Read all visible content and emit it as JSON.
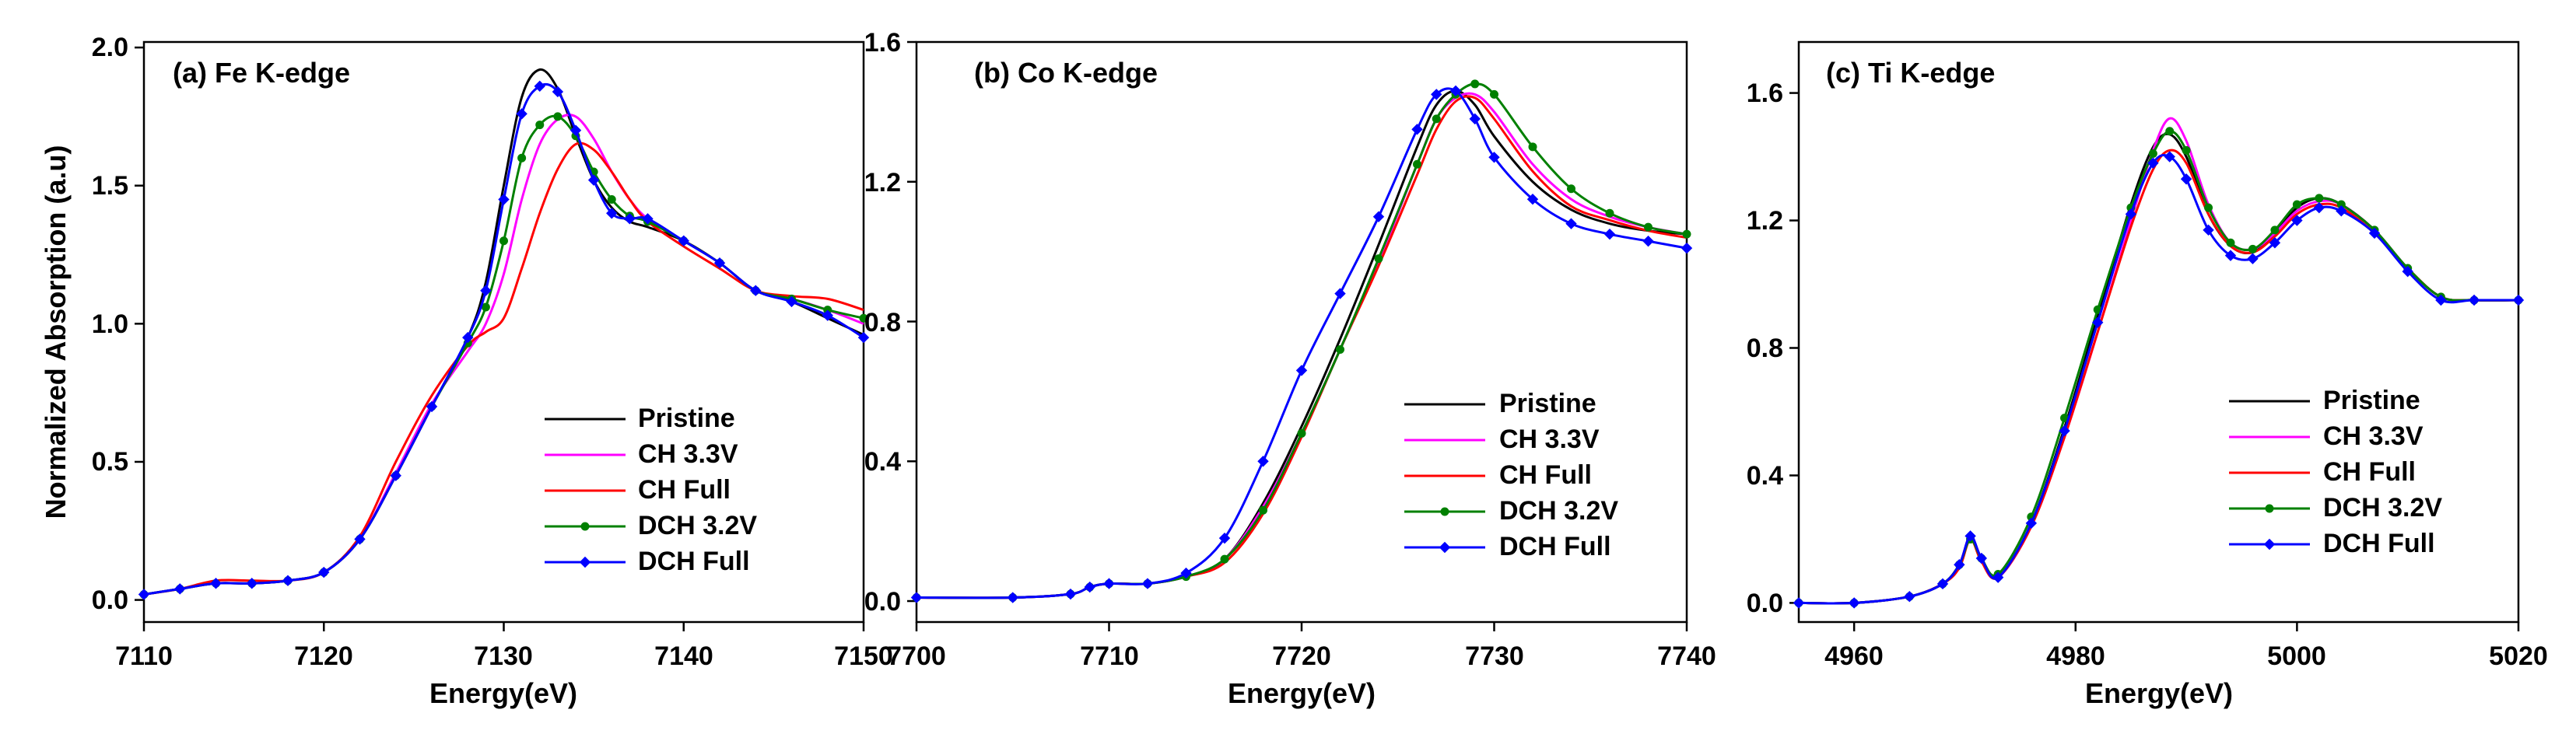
{
  "series_styles": [
    {
      "name": "Pristine",
      "color": "#000000",
      "marker": "none"
    },
    {
      "name": "CH 3.3V",
      "color": "#ff00ff",
      "marker": "none"
    },
    {
      "name": "CH Full",
      "color": "#ff0000",
      "marker": "none"
    },
    {
      "name": "DCH 3.2V",
      "color": "#008000",
      "marker": "circle"
    },
    {
      "name": "DCH Full",
      "color": "#0000ff",
      "marker": "diamond"
    }
  ],
  "chart_data": [
    {
      "type": "line",
      "title": "(a) Fe K-edge",
      "xlabel": "Energy(eV)",
      "ylabel": "Normalized Absorption (a.u)",
      "xlim": [
        7110,
        7150
      ],
      "ylim": [
        -0.08,
        2.02
      ],
      "xticks": [
        7110,
        7120,
        7130,
        7140,
        7150
      ],
      "xtick_labels": [
        "7110",
        "7120",
        "7130",
        "7140",
        "7150"
      ],
      "yticks": [
        0.0,
        0.5,
        1.0,
        1.5,
        2.0
      ],
      "ytick_labels": [
        "0.0",
        "0.5",
        "1.0",
        "1.5",
        "2.0"
      ],
      "legend": "lower-right",
      "series": [
        {
          "name": "Pristine",
          "x": [
            7110,
            7112,
            7114,
            7116,
            7118,
            7120,
            7122,
            7124,
            7126,
            7128,
            7129,
            7130,
            7131,
            7132,
            7133,
            7134,
            7135,
            7136,
            7137,
            7138,
            7140,
            7142,
            7144,
            7146,
            7148,
            7150
          ],
          "y": [
            0.02,
            0.04,
            0.06,
            0.06,
            0.07,
            0.1,
            0.22,
            0.45,
            0.7,
            0.95,
            1.15,
            1.5,
            1.82,
            1.92,
            1.85,
            1.68,
            1.52,
            1.42,
            1.37,
            1.35,
            1.3,
            1.22,
            1.12,
            1.08,
            1.02,
            0.96
          ]
        },
        {
          "name": "CH 3.3V",
          "x": [
            7110,
            7112,
            7114,
            7116,
            7118,
            7120,
            7122,
            7124,
            7126,
            7128,
            7129,
            7130,
            7131,
            7132,
            7133,
            7134,
            7135,
            7136,
            7137,
            7138,
            7140,
            7142,
            7144,
            7146,
            7148,
            7150
          ],
          "y": [
            0.02,
            0.04,
            0.06,
            0.06,
            0.07,
            0.1,
            0.22,
            0.46,
            0.71,
            0.9,
            1.0,
            1.18,
            1.45,
            1.65,
            1.74,
            1.75,
            1.67,
            1.55,
            1.45,
            1.38,
            1.3,
            1.22,
            1.12,
            1.09,
            1.05,
            1.0
          ]
        },
        {
          "name": "CH Full",
          "x": [
            7110,
            7112,
            7114,
            7116,
            7118,
            7120,
            7122,
            7124,
            7126,
            7128,
            7129,
            7130,
            7131,
            7132,
            7133,
            7134,
            7135,
            7136,
            7137,
            7138,
            7140,
            7142,
            7144,
            7146,
            7148,
            7150
          ],
          "y": [
            0.02,
            0.04,
            0.07,
            0.07,
            0.07,
            0.1,
            0.23,
            0.5,
            0.74,
            0.92,
            0.97,
            1.02,
            1.2,
            1.4,
            1.56,
            1.65,
            1.63,
            1.55,
            1.45,
            1.37,
            1.28,
            1.2,
            1.12,
            1.1,
            1.09,
            1.05
          ]
        },
        {
          "name": "DCH 3.2V",
          "x": [
            7110,
            7112,
            7114,
            7116,
            7118,
            7120,
            7122,
            7124,
            7126,
            7128,
            7129,
            7130,
            7131,
            7132,
            7133,
            7134,
            7135,
            7136,
            7137,
            7138,
            7140,
            7142,
            7144,
            7146,
            7148,
            7150
          ],
          "y": [
            0.02,
            0.04,
            0.06,
            0.06,
            0.07,
            0.1,
            0.22,
            0.45,
            0.7,
            0.93,
            1.06,
            1.3,
            1.6,
            1.72,
            1.75,
            1.68,
            1.55,
            1.45,
            1.39,
            1.37,
            1.3,
            1.22,
            1.12,
            1.09,
            1.05,
            1.02
          ]
        },
        {
          "name": "DCH Full",
          "x": [
            7110,
            7112,
            7114,
            7116,
            7118,
            7120,
            7122,
            7124,
            7126,
            7128,
            7129,
            7130,
            7131,
            7132,
            7133,
            7134,
            7135,
            7136,
            7137,
            7138,
            7140,
            7142,
            7144,
            7146,
            7148,
            7150
          ],
          "y": [
            0.02,
            0.04,
            0.06,
            0.06,
            0.07,
            0.1,
            0.22,
            0.45,
            0.7,
            0.95,
            1.12,
            1.45,
            1.76,
            1.86,
            1.84,
            1.7,
            1.52,
            1.4,
            1.38,
            1.38,
            1.3,
            1.22,
            1.12,
            1.08,
            1.03,
            0.95
          ]
        }
      ]
    },
    {
      "type": "line",
      "title": "(b) Co K-edge",
      "xlabel": "Energy(eV)",
      "ylabel": "",
      "xlim": [
        7700,
        7740
      ],
      "ylim": [
        -0.06,
        1.6
      ],
      "xticks": [
        7700,
        7710,
        7720,
        7730,
        7740
      ],
      "xtick_labels": [
        "7700",
        "7710",
        "7720",
        "7730",
        "7740"
      ],
      "yticks": [
        0.0,
        0.4,
        0.8,
        1.2,
        1.6
      ],
      "ytick_labels": [
        "0.0",
        "0.4",
        "0.8",
        "1.2",
        "1.6"
      ],
      "legend": "lower-right",
      "series": [
        {
          "name": "Pristine",
          "x": [
            7700,
            7705,
            7708,
            7709,
            7710,
            7712,
            7714,
            7716,
            7718,
            7720,
            7722,
            7724,
            7726,
            7727,
            7728,
            7729,
            7730,
            7732,
            7734,
            7736,
            7738,
            7740
          ],
          "y": [
            0.01,
            0.01,
            0.02,
            0.04,
            0.05,
            0.05,
            0.07,
            0.12,
            0.28,
            0.5,
            0.75,
            1.02,
            1.3,
            1.42,
            1.46,
            1.42,
            1.33,
            1.2,
            1.12,
            1.08,
            1.06,
            1.05
          ]
        },
        {
          "name": "CH 3.3V",
          "x": [
            7700,
            7705,
            7708,
            7709,
            7710,
            7712,
            7714,
            7716,
            7718,
            7720,
            7722,
            7724,
            7726,
            7727,
            7728,
            7729,
            7730,
            7732,
            7734,
            7736,
            7738,
            7740
          ],
          "y": [
            0.01,
            0.01,
            0.02,
            0.04,
            0.05,
            0.05,
            0.07,
            0.12,
            0.27,
            0.48,
            0.72,
            0.97,
            1.25,
            1.38,
            1.44,
            1.45,
            1.4,
            1.25,
            1.15,
            1.1,
            1.07,
            1.05
          ]
        },
        {
          "name": "CH Full",
          "x": [
            7700,
            7705,
            7708,
            7709,
            7710,
            7712,
            7714,
            7716,
            7718,
            7720,
            7722,
            7724,
            7726,
            7727,
            7728,
            7729,
            7730,
            7732,
            7734,
            7736,
            7738,
            7740
          ],
          "y": [
            0.01,
            0.01,
            0.02,
            0.04,
            0.05,
            0.05,
            0.07,
            0.11,
            0.25,
            0.47,
            0.72,
            0.96,
            1.22,
            1.35,
            1.43,
            1.44,
            1.38,
            1.23,
            1.13,
            1.09,
            1.06,
            1.04
          ]
        },
        {
          "name": "DCH 3.2V",
          "x": [
            7700,
            7705,
            7708,
            7709,
            7710,
            7712,
            7714,
            7716,
            7718,
            7720,
            7722,
            7724,
            7726,
            7727,
            7728,
            7729,
            7730,
            7732,
            7734,
            7736,
            7738,
            7740
          ],
          "y": [
            0.01,
            0.01,
            0.02,
            0.04,
            0.05,
            0.05,
            0.07,
            0.12,
            0.26,
            0.48,
            0.72,
            0.98,
            1.25,
            1.38,
            1.45,
            1.48,
            1.45,
            1.3,
            1.18,
            1.11,
            1.07,
            1.05
          ]
        },
        {
          "name": "DCH Full",
          "x": [
            7700,
            7705,
            7708,
            7709,
            7710,
            7712,
            7714,
            7716,
            7718,
            7720,
            7722,
            7724,
            7726,
            7727,
            7728,
            7729,
            7730,
            7732,
            7734,
            7736,
            7738,
            7740
          ],
          "y": [
            0.01,
            0.01,
            0.02,
            0.04,
            0.05,
            0.05,
            0.08,
            0.18,
            0.4,
            0.66,
            0.88,
            1.1,
            1.35,
            1.45,
            1.46,
            1.38,
            1.27,
            1.15,
            1.08,
            1.05,
            1.03,
            1.01
          ]
        }
      ]
    },
    {
      "type": "line",
      "title": "(c) Ti K-edge",
      "xlabel": "Energy(eV)",
      "ylabel": "",
      "xlim": [
        4955,
        5020
      ],
      "ylim": [
        -0.06,
        1.76
      ],
      "xticks": [
        4960,
        4980,
        5000,
        5020
      ],
      "xtick_labels": [
        "4960",
        "4980",
        "5000",
        "5020"
      ],
      "yticks": [
        0.0,
        0.4,
        0.8,
        1.2,
        1.6
      ],
      "ytick_labels": [
        "0.0",
        "0.4",
        "0.8",
        "1.2",
        "1.6"
      ],
      "legend": "lower-right",
      "series": [
        {
          "name": "Pristine",
          "x": [
            4955,
            4960,
            4965,
            4968,
            4969.5,
            4970.5,
            4971.5,
            4973,
            4976,
            4979,
            4982,
            4985,
            4987,
            4988.5,
            4990,
            4992,
            4994,
            4996,
            4998,
            5000,
            5002,
            5004,
            5007,
            5010,
            5013,
            5016,
            5020
          ],
          "y": [
            0.0,
            0.0,
            0.02,
            0.06,
            0.12,
            0.2,
            0.14,
            0.08,
            0.25,
            0.55,
            0.9,
            1.25,
            1.43,
            1.47,
            1.4,
            1.22,
            1.12,
            1.1,
            1.16,
            1.24,
            1.27,
            1.25,
            1.17,
            1.05,
            0.96,
            0.95,
            0.95
          ]
        },
        {
          "name": "CH 3.3V",
          "x": [
            4955,
            4960,
            4965,
            4968,
            4969.5,
            4970.5,
            4971.5,
            4973,
            4976,
            4979,
            4982,
            4985,
            4987,
            4988.5,
            4990,
            4992,
            4994,
            4996,
            4998,
            5000,
            5002,
            5004,
            5007,
            5010,
            5013,
            5016,
            5020
          ],
          "y": [
            0.0,
            0.0,
            0.02,
            0.06,
            0.12,
            0.21,
            0.14,
            0.08,
            0.24,
            0.52,
            0.85,
            1.2,
            1.42,
            1.52,
            1.45,
            1.25,
            1.13,
            1.11,
            1.16,
            1.23,
            1.26,
            1.25,
            1.17,
            1.05,
            0.96,
            0.95,
            0.95
          ]
        },
        {
          "name": "CH Full",
          "x": [
            4955,
            4960,
            4965,
            4968,
            4969.5,
            4970.5,
            4971.5,
            4973,
            4976,
            4979,
            4982,
            4985,
            4987,
            4988.5,
            4990,
            4992,
            4994,
            4996,
            4998,
            5000,
            5002,
            5004,
            5007,
            5010,
            5013,
            5016,
            5020
          ],
          "y": [
            0.0,
            0.0,
            0.02,
            0.06,
            0.11,
            0.2,
            0.13,
            0.08,
            0.24,
            0.52,
            0.85,
            1.18,
            1.36,
            1.42,
            1.38,
            1.22,
            1.12,
            1.1,
            1.15,
            1.22,
            1.25,
            1.24,
            1.16,
            1.05,
            0.96,
            0.95,
            0.95
          ]
        },
        {
          "name": "DCH 3.2V",
          "x": [
            4955,
            4960,
            4965,
            4968,
            4969.5,
            4970.5,
            4971.5,
            4973,
            4976,
            4979,
            4982,
            4985,
            4987,
            4988.5,
            4990,
            4992,
            4994,
            4996,
            4998,
            5000,
            5002,
            5004,
            5007,
            5010,
            5013,
            5016,
            5020
          ],
          "y": [
            0.0,
            0.0,
            0.02,
            0.06,
            0.12,
            0.2,
            0.14,
            0.09,
            0.27,
            0.58,
            0.92,
            1.24,
            1.41,
            1.48,
            1.42,
            1.24,
            1.13,
            1.11,
            1.17,
            1.25,
            1.27,
            1.25,
            1.17,
            1.05,
            0.96,
            0.95,
            0.95
          ]
        },
        {
          "name": "DCH Full",
          "x": [
            4955,
            4960,
            4965,
            4968,
            4969.5,
            4970.5,
            4971.5,
            4973,
            4976,
            4979,
            4982,
            4985,
            4987,
            4988.5,
            4990,
            4992,
            4994,
            4996,
            4998,
            5000,
            5002,
            5004,
            5007,
            5010,
            5013,
            5016,
            5020
          ],
          "y": [
            0.0,
            0.0,
            0.02,
            0.06,
            0.12,
            0.21,
            0.14,
            0.08,
            0.25,
            0.54,
            0.88,
            1.22,
            1.38,
            1.4,
            1.33,
            1.17,
            1.09,
            1.08,
            1.13,
            1.2,
            1.24,
            1.23,
            1.16,
            1.04,
            0.95,
            0.95,
            0.95
          ]
        }
      ]
    }
  ]
}
